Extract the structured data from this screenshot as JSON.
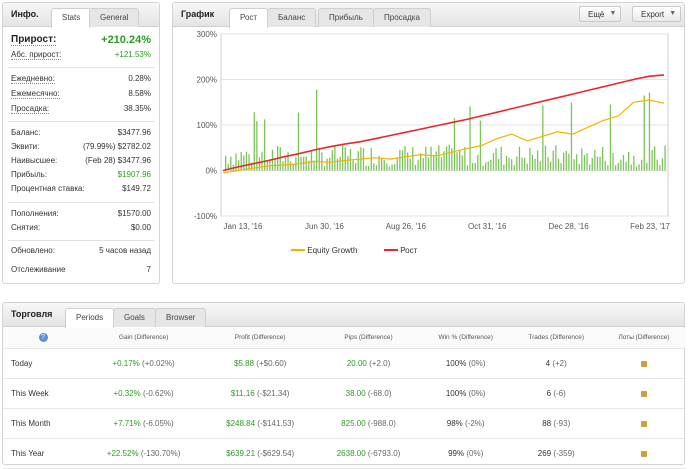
{
  "info": {
    "title": "Инфо.",
    "tabs": [
      "Stats",
      "General"
    ],
    "growth_label": "Прирост:",
    "growth_value": "+210.24%",
    "abs_label": "Абс. прирост:",
    "abs_value": "+121.53%",
    "daily_label": "Ежедневно:",
    "daily_value": "0.28%",
    "monthly_label": "Ежемесячно:",
    "monthly_value": "8.58%",
    "drawdown_label": "Просадка:",
    "drawdown_value": "38.35%",
    "balance_label": "Баланс:",
    "balance_value": "$3477.96",
    "equity_label": "Эквити:",
    "equity_value": "(79.99%) $2782.02",
    "highest_label": "Наивысшее:",
    "highest_value": "(Feb 28) $3477.96",
    "profit_label": "Прибыль:",
    "profit_value": "$1907.96",
    "interest_label": "Процентная ставка:",
    "interest_value": "$149.72",
    "deposits_label": "Пополнения:",
    "deposits_value": "$1570.00",
    "withdrawals_label": "Снятия:",
    "withdrawals_value": "$0.00",
    "updated_label": "Обновлено:",
    "updated_value": "5 часов назад",
    "tracking_label": "Отслеживание",
    "tracking_value": "7"
  },
  "chart": {
    "title": "График",
    "tabs": [
      "Рост",
      "Баланс",
      "Прибыль",
      "Просадка"
    ],
    "btn_more": "Ещё",
    "btn_export": "Export",
    "legend_equity": "Equity Growth",
    "legend_growth": "Рост",
    "color_growth": "#e8292b",
    "color_equity": "#f0b400",
    "color_bars": "#7cc45a"
  },
  "chart_data": {
    "type": "line",
    "y_ticks": [
      "300%",
      "200%",
      "100%",
      "0%",
      "-100%"
    ],
    "x_ticks": [
      "Jan 13, '16",
      "Jun 30, '16",
      "Aug 26, '16",
      "Oct 31, '16",
      "Dec 28, '16",
      "Feb 23, '17"
    ],
    "ylim": [
      -100,
      300
    ],
    "series": [
      {
        "name": "Рост",
        "values": [
          0,
          8,
          15,
          22,
          30,
          37,
          45,
          52,
          58,
          63,
          70,
          77,
          84,
          91,
          98,
          105,
          112,
          120,
          128,
          136,
          144,
          152,
          160,
          168,
          176,
          184,
          192,
          200,
          207,
          210
        ]
      },
      {
        "name": "Equity Growth",
        "values": [
          -5,
          0,
          5,
          10,
          12,
          15,
          20,
          18,
          22,
          25,
          28,
          25,
          30,
          35,
          32,
          40,
          48,
          55,
          70,
          80,
          65,
          75,
          85,
          80,
          95,
          110,
          120,
          150,
          155,
          148
        ]
      }
    ]
  },
  "trade": {
    "title": "Торговля",
    "tabs": [
      "Periods",
      "Goals",
      "Browser"
    ],
    "headers": [
      "Gain (Difference)",
      "Profit (Difference)",
      "Pips (Difference)",
      "Win % (Difference)",
      "Trades (Difference)",
      "Лоты (Difference)"
    ],
    "rows": [
      {
        "period": "Today",
        "gain": "+0.17%",
        "gain_diff": "(+0.02%)",
        "profit": "$5.88",
        "profit_diff": "(+$0.60)",
        "pips": "20.00",
        "pips_diff": "(+2.0)",
        "win": "100%",
        "win_diff": "(0%)",
        "trades": "4",
        "trades_diff": "(+2)"
      },
      {
        "period": "This Week",
        "gain": "+0.32%",
        "gain_diff": "(-0.62%)",
        "profit": "$11.16",
        "profit_diff": "(-$21.34)",
        "pips": "38.00",
        "pips_diff": "(-68.0)",
        "win": "100%",
        "win_diff": "(0%)",
        "trades": "6",
        "trades_diff": "(-6)"
      },
      {
        "period": "This Month",
        "gain": "+7.71%",
        "gain_diff": "(-6.05%)",
        "profit": "$248.84",
        "profit_diff": "(-$141.53)",
        "pips": "825.00",
        "pips_diff": "(-988.0)",
        "win": "98%",
        "win_diff": "(-2%)",
        "trades": "88",
        "trades_diff": "(-93)"
      },
      {
        "period": "This Year",
        "gain": "+22.52%",
        "gain_diff": "(-130.70%)",
        "profit": "$639.21",
        "profit_diff": "(-$629.54)",
        "pips": "2638.00",
        "pips_diff": "(-6793.0)",
        "win": "99%",
        "win_diff": "(0%)",
        "trades": "269",
        "trades_diff": "(-359)"
      }
    ]
  }
}
